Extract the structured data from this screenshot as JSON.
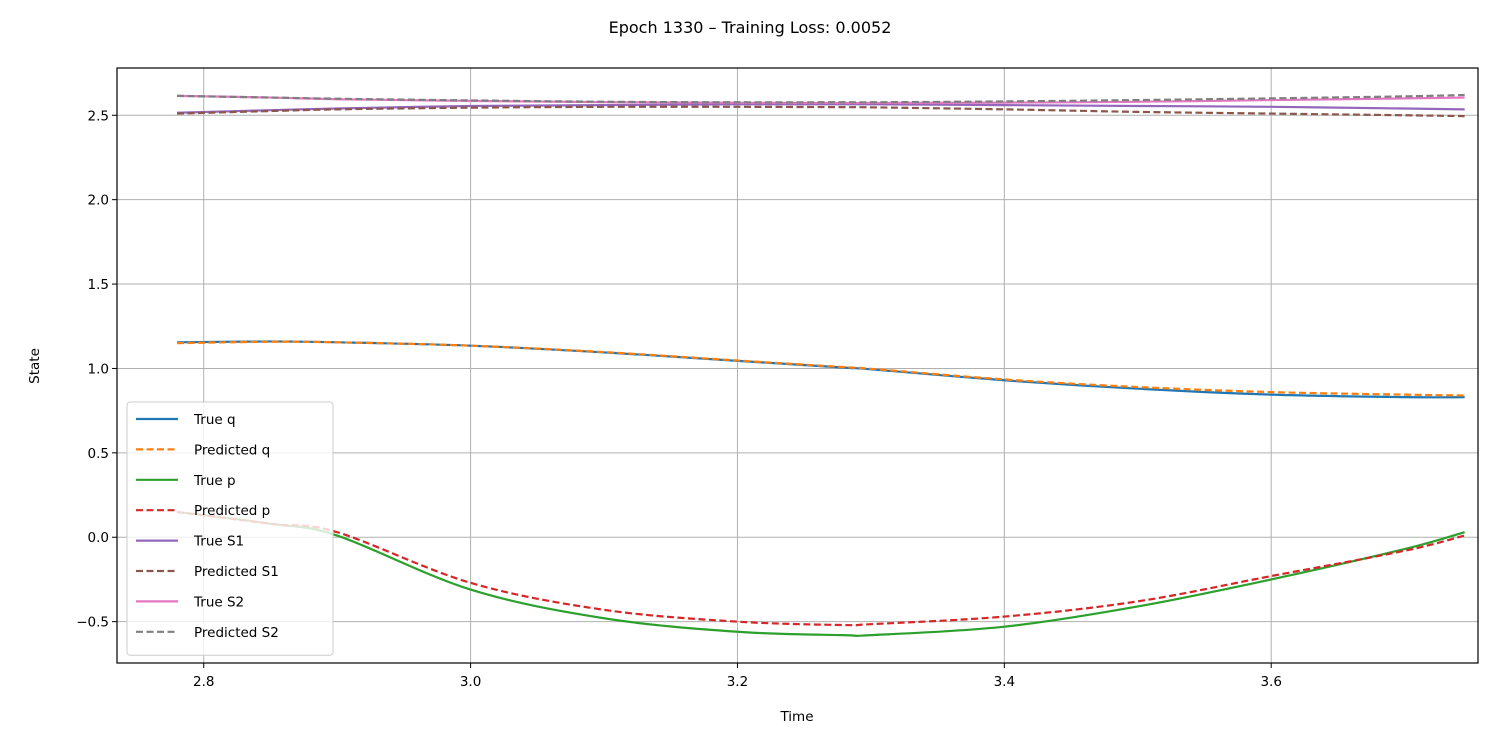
{
  "figure": {
    "title": "Epoch 1330 – Training Loss: 0.0052"
  },
  "chart_data": {
    "type": "line",
    "title": "Epoch 1330 – Training Loss: 0.0052",
    "xlabel": "Time",
    "ylabel": "State",
    "xlim": [
      2.735,
      3.755
    ],
    "ylim": [
      -0.745,
      2.78
    ],
    "xticks": [
      2.8,
      3.0,
      3.2,
      3.4,
      3.6
    ],
    "xtick_labels": [
      "2.8",
      "3.0",
      "3.2",
      "3.4",
      "3.6"
    ],
    "yticks": [
      -0.5,
      0.0,
      0.5,
      1.0,
      1.5,
      2.0,
      2.5
    ],
    "ytick_labels": [
      "−0.5",
      "0.0",
      "0.5",
      "1.0",
      "1.5",
      "2.0",
      "2.5"
    ],
    "grid": true,
    "legend_position": "lower-left",
    "x": [
      2.78,
      2.85,
      2.9,
      3.0,
      3.1,
      3.2,
      3.28,
      3.3,
      3.4,
      3.5,
      3.6,
      3.7,
      3.745
    ],
    "series": [
      {
        "name": "True q",
        "color": "#1f77b4",
        "style": "solid",
        "values": [
          1.155,
          1.16,
          1.155,
          1.135,
          1.095,
          1.045,
          1.005,
          0.995,
          0.93,
          0.88,
          0.845,
          0.83,
          0.83
        ]
      },
      {
        "name": "Predicted q",
        "color": "#ff7f0e",
        "style": "dashed",
        "values": [
          1.15,
          1.158,
          1.155,
          1.135,
          1.097,
          1.047,
          1.008,
          0.998,
          0.935,
          0.89,
          0.86,
          0.845,
          0.84
        ]
      },
      {
        "name": "True p",
        "color": "#2ca02c",
        "style": "solid",
        "values": [
          0.15,
          0.08,
          0.01,
          -0.31,
          -0.48,
          -0.56,
          -0.58,
          -0.58,
          -0.53,
          -0.41,
          -0.25,
          -0.07,
          0.03
        ]
      },
      {
        "name": "Predicted p",
        "color": "#d62728",
        "style": "dashed",
        "values": [
          0.15,
          0.08,
          0.03,
          -0.27,
          -0.43,
          -0.5,
          -0.52,
          -0.515,
          -0.47,
          -0.38,
          -0.23,
          -0.08,
          0.01
        ]
      },
      {
        "name": "True S1",
        "color": "#9467bd",
        "style": "solid",
        "values": [
          2.515,
          2.53,
          2.54,
          2.555,
          2.56,
          2.565,
          2.565,
          2.565,
          2.56,
          2.555,
          2.55,
          2.54,
          2.535
        ]
      },
      {
        "name": "Predicted S1",
        "color": "#8c564b",
        "style": "dashed",
        "values": [
          2.51,
          2.525,
          2.535,
          2.545,
          2.55,
          2.55,
          2.548,
          2.547,
          2.535,
          2.52,
          2.51,
          2.5,
          2.495
        ]
      },
      {
        "name": "True S2",
        "color": "#e377c2",
        "style": "solid",
        "values": [
          2.615,
          2.605,
          2.595,
          2.585,
          2.578,
          2.574,
          2.573,
          2.573,
          2.575,
          2.58,
          2.59,
          2.6,
          2.605
        ]
      },
      {
        "name": "Predicted S2",
        "color": "#7f7f7f",
        "style": "dashed",
        "values": [
          2.615,
          2.605,
          2.598,
          2.588,
          2.58,
          2.577,
          2.577,
          2.577,
          2.582,
          2.59,
          2.6,
          2.612,
          2.62
        ]
      }
    ]
  }
}
